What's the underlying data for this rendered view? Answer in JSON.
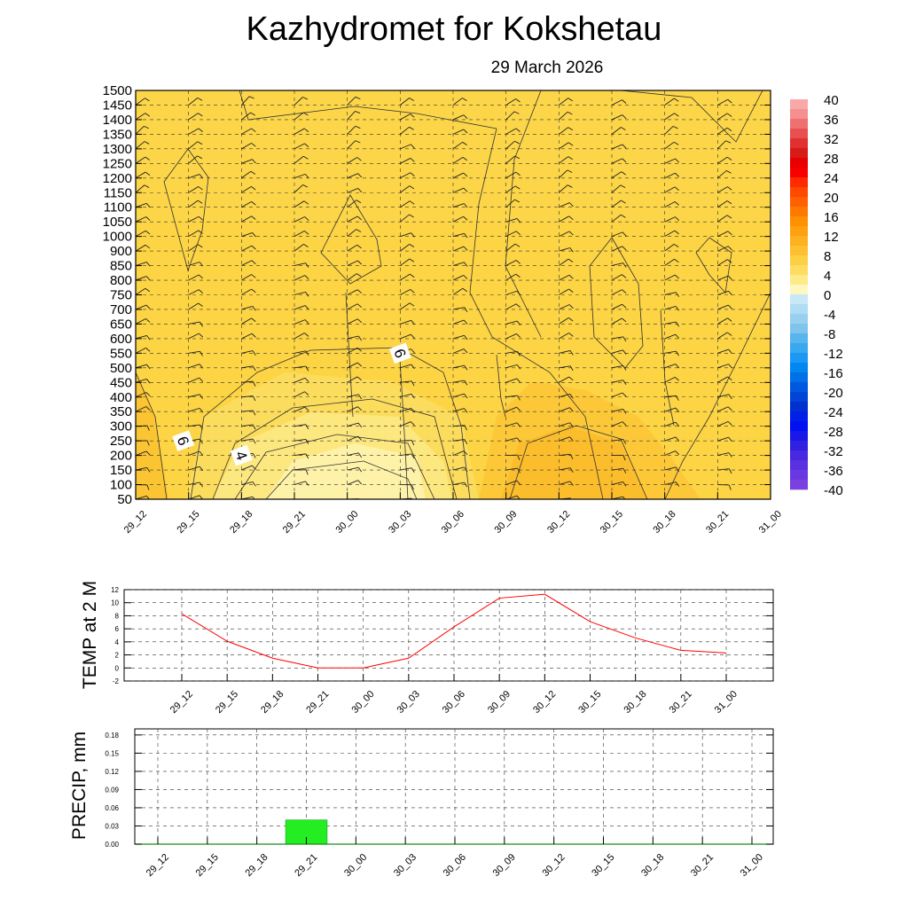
{
  "header": {
    "title": "Kazhydromet  for Kokshetau",
    "date": "29 March 2026"
  },
  "colors": {
    "warm_fill": "#fcc838",
    "mid_fill": "#fcd848",
    "light_fill": "#fdeb84",
    "temp_line": "#ff0000",
    "precip_bar": "#22ee22"
  },
  "chart_data": [
    {
      "type": "heatmap",
      "name": "cross-section",
      "title": "Kazhydromet  for Kokshetau",
      "subtitle": "29 March 2026",
      "x_ticks": [
        "29_12",
        "29_15",
        "29_18",
        "29_21",
        "30_00",
        "30_03",
        "30_06",
        "30_09",
        "30_12",
        "30_15",
        "30_18",
        "30_21",
        "31_00"
      ],
      "y_ticks": [
        1500,
        1450,
        1400,
        1350,
        1300,
        1250,
        1200,
        1150,
        1100,
        1050,
        1000,
        900,
        850,
        800,
        750,
        700,
        650,
        600,
        550,
        500,
        450,
        400,
        350,
        300,
        250,
        200,
        150,
        100,
        50
      ],
      "contour_labels": [
        {
          "text": "6",
          "time_index": 5.0,
          "level": 550
        },
        {
          "text": "6",
          "time_index": 0.9,
          "level": 250
        },
        {
          "text": "4",
          "time_index": 2.0,
          "level": 200
        }
      ],
      "colorbar": {
        "labels": [
          "40",
          "36",
          "32",
          "28",
          "24",
          "20",
          "16",
          "12",
          "8",
          "4",
          "0",
          "-4",
          "-8",
          "-12",
          "-16",
          "-20",
          "-24",
          "-28",
          "-32",
          "-36",
          "-40"
        ],
        "range": [
          -40,
          40
        ]
      }
    },
    {
      "type": "line",
      "name": "temperature",
      "ylabel": "TEMP at 2 M",
      "ylim": [
        -2,
        12
      ],
      "y_ticks": [
        "12",
        "10",
        "8",
        "6",
        "4",
        "2",
        "0",
        "-2"
      ],
      "categories": [
        "29_12",
        "29_15",
        "29_18",
        "29_21",
        "30_00",
        "30_03",
        "30_06",
        "30_09",
        "30_12",
        "30_15",
        "30_18",
        "30_21",
        "31_00"
      ],
      "values": [
        8.3,
        4.1,
        1.5,
        0.0,
        0.0,
        1.5,
        6.3,
        10.7,
        11.3,
        7.1,
        4.6,
        2.7,
        2.3
      ]
    },
    {
      "type": "bar",
      "name": "precipitation",
      "ylabel": "PRECIP, mm",
      "ylim": [
        0,
        0.19
      ],
      "y_ticks": [
        "0.18",
        "0.15",
        "0.12",
        "0.09",
        "0.06",
        "0.03",
        "0.00"
      ],
      "categories": [
        "29_12",
        "29_15",
        "29_18",
        "29_21",
        "30_00",
        "30_03",
        "30_06",
        "30_09",
        "30_12",
        "30_15",
        "30_18",
        "30_21",
        "31_00"
      ],
      "values": [
        0,
        0,
        0,
        0.04,
        0,
        0,
        0,
        0,
        0,
        0,
        0,
        0,
        0
      ]
    }
  ]
}
